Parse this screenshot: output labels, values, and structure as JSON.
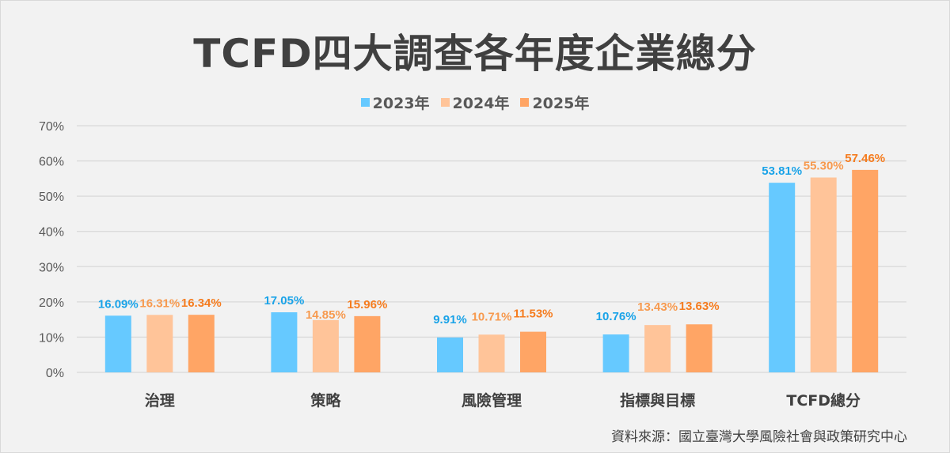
{
  "chart_data": {
    "type": "bar",
    "title": "TCFD四大調查各年度企業總分",
    "categories": [
      "治理",
      "策略",
      "風險管理",
      "指標與目標",
      "TCFD總分"
    ],
    "series": [
      {
        "name": "2023年",
        "color": "#66c9ff",
        "label_color": "#1aa3e8",
        "values": [
          16.09,
          17.05,
          9.91,
          10.76,
          53.81
        ],
        "labels": [
          "16.09%",
          "17.05%",
          "9.91%",
          "10.76%",
          "53.81%"
        ]
      },
      {
        "name": "2024年",
        "color": "#ffc499",
        "label_color": "#f79a4f",
        "values": [
          16.31,
          14.85,
          10.71,
          13.43,
          55.3
        ],
        "labels": [
          "16.31%",
          "14.85%",
          "10.71%",
          "13.43%",
          "55.30%"
        ]
      },
      {
        "name": "2025年",
        "color": "#ffa565",
        "label_color": "#f57c1f",
        "values": [
          16.34,
          15.96,
          11.53,
          13.63,
          57.46
        ],
        "labels": [
          "16.34%",
          "15.96%",
          "11.53%",
          "13.63%",
          "57.46%"
        ]
      }
    ],
    "yticks": [
      "0%",
      "10%",
      "20%",
      "30%",
      "40%",
      "50%",
      "60%",
      "70%"
    ],
    "ylim": [
      0,
      70
    ],
    "xlabel": "",
    "ylabel": "",
    "grid": true,
    "legend_position": "top-center"
  },
  "source": "資料來源：國立臺灣大學風險社會與政策研究中心"
}
